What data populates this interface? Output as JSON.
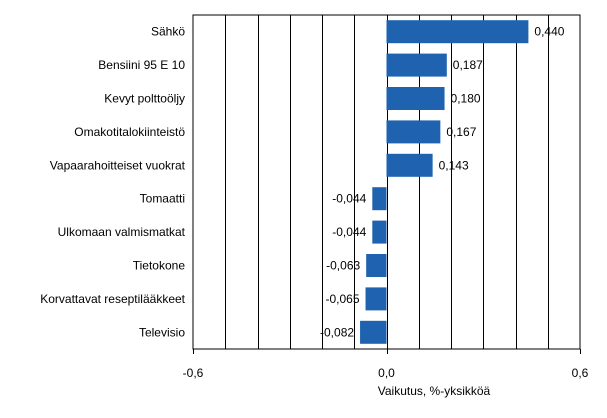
{
  "chart_data": {
    "type": "bar",
    "orientation": "horizontal",
    "title": "",
    "xlabel": "Vaikutus, %-yksikköä",
    "ylabel": "",
    "xlim": [
      -0.6,
      0.6
    ],
    "x_ticks": [
      -0.6,
      0.0,
      0.6
    ],
    "x_tick_labels": [
      "-0,6",
      "0,0",
      "0,6"
    ],
    "grid": "vertical",
    "grid_step": 0.1,
    "bar_color": "#1f63b0",
    "categories": [
      "Sähkö",
      "Bensiini 95 E 10",
      "Kevyt polttoöljy",
      "Omakotitalokiinteistö",
      "Vapaarahoitteiset vuokrat",
      "Tomaatti",
      "Ulkomaan valmismatkat",
      "Tietokone",
      "Korvattavat reseptilääkkeet",
      "Televisio"
    ],
    "values": [
      0.44,
      0.187,
      0.18,
      0.167,
      0.143,
      -0.044,
      -0.044,
      -0.063,
      -0.065,
      -0.082
    ],
    "value_labels": [
      "0,440",
      "0,187",
      "0,180",
      "0,167",
      "0,143",
      "-0,044",
      "-0,044",
      "-0,063",
      "-0,065",
      "-0,082"
    ]
  }
}
